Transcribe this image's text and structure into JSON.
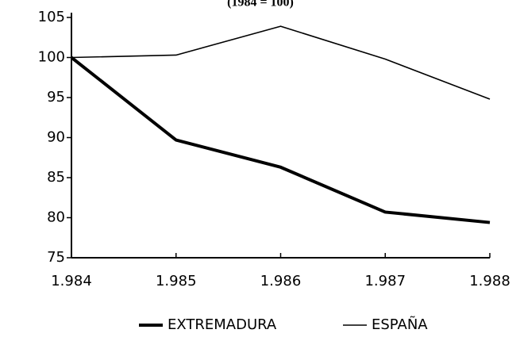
{
  "chart_data": {
    "type": "line",
    "subtitle": "(1984 = 100)",
    "categories": [
      "1.984",
      "1.985",
      "1.986",
      "1.987",
      "1.988"
    ],
    "series": [
      {
        "name": "EXTREMADURA",
        "color": "#000000",
        "line_width": 4,
        "values": [
          100,
          89.7,
          86.3,
          80.7,
          79.4
        ]
      },
      {
        "name": "ESPAÑA",
        "color": "#000000",
        "line_width": 1.6,
        "values": [
          100,
          100.3,
          103.9,
          99.8,
          94.8
        ]
      }
    ],
    "ylim": [
      75,
      105
    ],
    "yticks": [
      75,
      80,
      85,
      90,
      95,
      100,
      105
    ],
    "grid": false,
    "legend": "bottom"
  }
}
